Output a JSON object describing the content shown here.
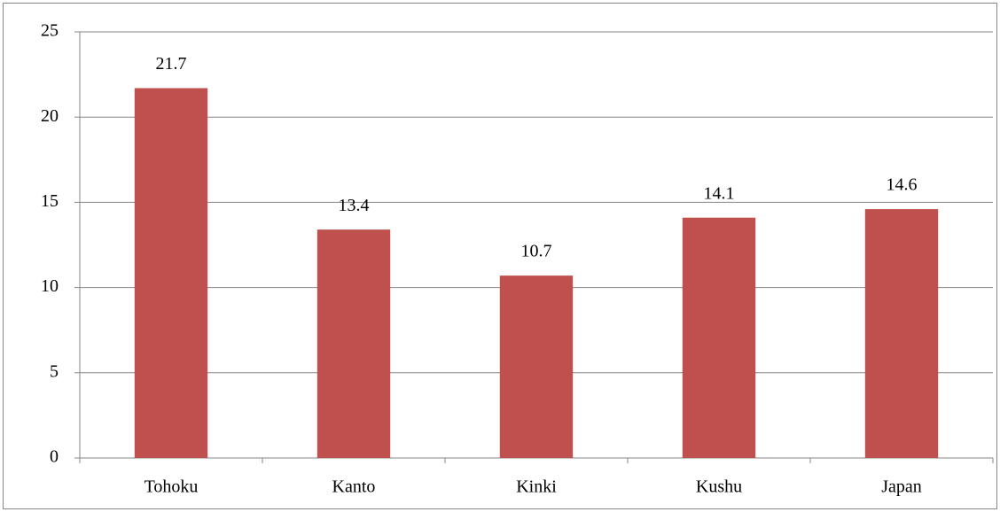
{
  "chart_data": {
    "type": "bar",
    "categories": [
      "Tohoku",
      "Kanto",
      "Kinki",
      "Kushu",
      "Japan"
    ],
    "values": [
      21.7,
      13.4,
      10.7,
      14.1,
      14.6
    ],
    "color": "#c0504d",
    "ylim": [
      0,
      25
    ],
    "yticks": [
      0,
      5,
      10,
      15,
      20,
      25
    ],
    "grid": true,
    "data_labels": true
  }
}
